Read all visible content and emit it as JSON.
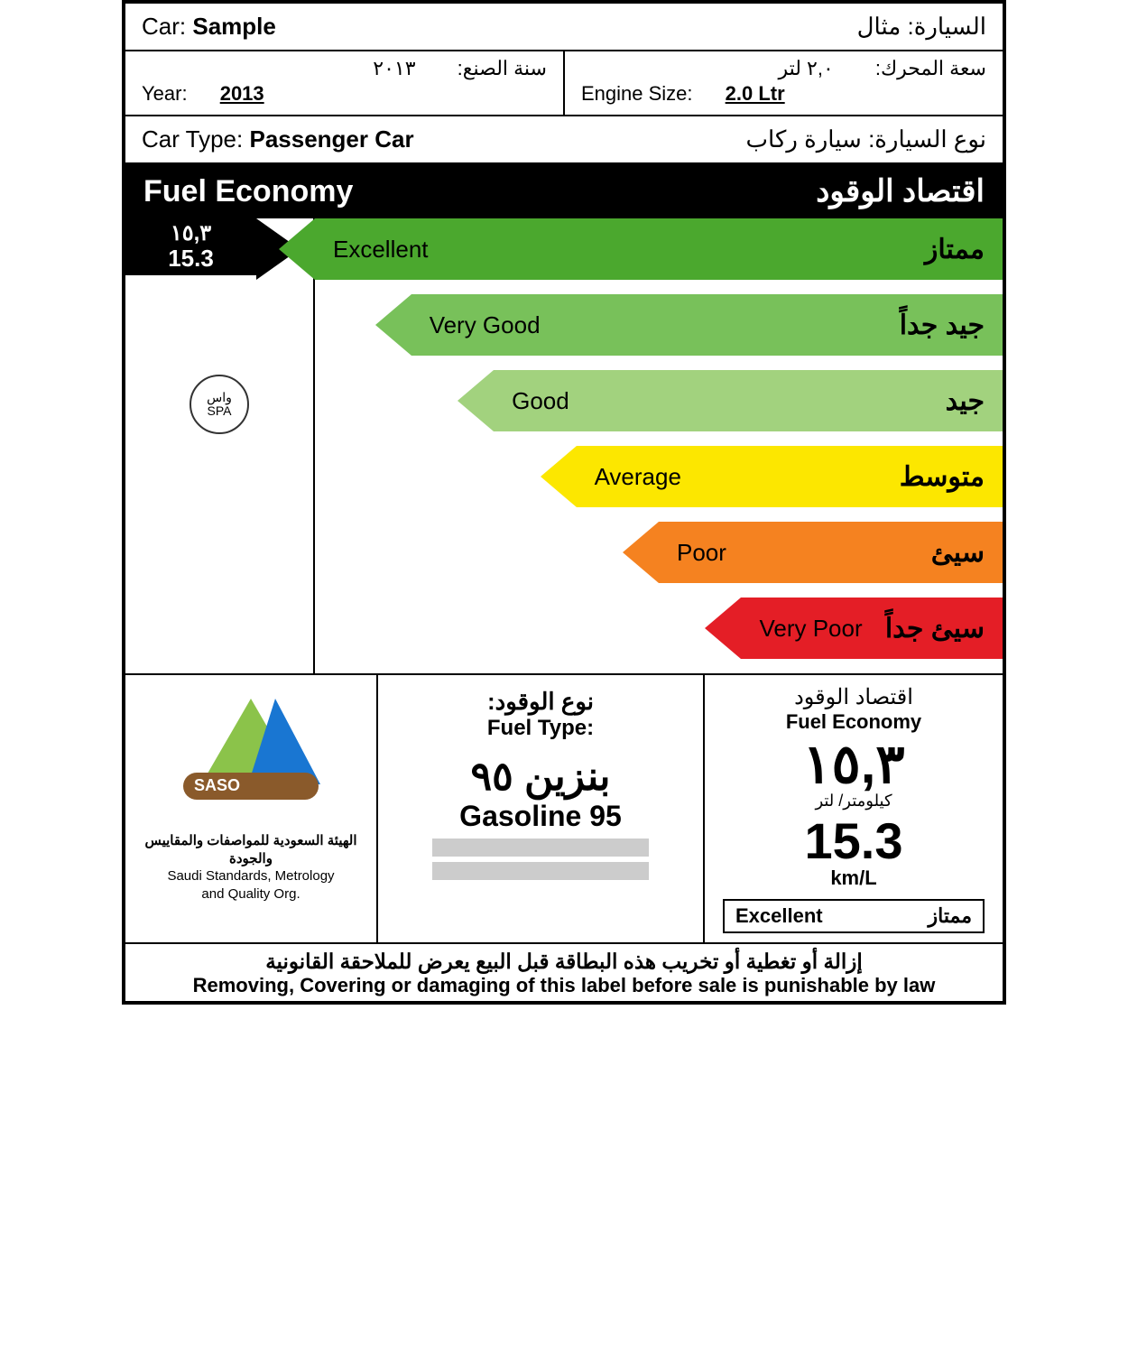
{
  "car": {
    "label_en": "Car:",
    "value_en": "Sample",
    "label_ar": "السيارة:",
    "value_ar": "مثال"
  },
  "year": {
    "label_en": "Year:",
    "value_en": "2013",
    "label_ar": "سنة الصنع:",
    "value_ar": "٢٠١٣"
  },
  "engine": {
    "label_en": "Engine Size:",
    "value_en": "2.0 Ltr",
    "label_ar": "سعة المحرك:",
    "value_ar": "٢,٠ لتر"
  },
  "car_type": {
    "label_en": "Car Type:",
    "value_en": "Passenger Car",
    "label_ar": "نوع السيارة:",
    "value_ar": "سيارة ركاب"
  },
  "header": {
    "en": "Fuel Economy",
    "ar": "اقتصاد الوقود"
  },
  "pointer": {
    "ar": "١٥,٣",
    "en": "15.3"
  },
  "watermark": {
    "ar": "واس",
    "en": "SPA"
  },
  "bars": [
    {
      "en": "Excellent",
      "ar": "ممتاز",
      "color": "#4ba82e",
      "width_pct": 100,
      "offset_pct": 0
    },
    {
      "en": "Very Good",
      "ar": "جيد جداً",
      "color": "#78c15a",
      "width_pct": 86,
      "offset_pct": 14
    },
    {
      "en": "Good",
      "ar": "جيد",
      "color": "#a2d27e",
      "width_pct": 74,
      "offset_pct": 26
    },
    {
      "en": "Average",
      "ar": "متوسط",
      "color": "#fce700",
      "width_pct": 62,
      "offset_pct": 38
    },
    {
      "en": "Poor",
      "ar": "سيئ",
      "color": "#f58220",
      "width_pct": 50,
      "offset_pct": 50
    },
    {
      "en": "Very Poor",
      "ar": "سيئ جداً",
      "color": "#e41e26",
      "width_pct": 38,
      "offset_pct": 62
    }
  ],
  "saso": {
    "badge": "SASO",
    "ar": "الهيئة السعودية للمواصفات والمقاييس والجودة",
    "en1": "Saudi Standards, Metrology",
    "en2": "and Quality Org."
  },
  "fuel_type": {
    "label_ar": "نوع الوقود:",
    "label_en": "Fuel Type:",
    "value_ar": "بنزين ٩٥",
    "value_en": "Gasoline 95"
  },
  "fuel_econ": {
    "label_ar": "اقتصاد الوقود",
    "label_en": "Fuel Economy",
    "big_ar": "١٥,٣",
    "unit_ar": "كيلومتر/ لتر",
    "big_en": "15.3",
    "unit_en": "km/L",
    "rating_en": "Excellent",
    "rating_ar": "ممتاز"
  },
  "warning": {
    "ar": "إزالة أو تغطية أو تخريب هذه البطاقة قبل البيع يعرض للملاحقة القانونية",
    "en": "Removing, Covering or damaging of this label before sale is punishable by law"
  },
  "colors": {
    "black": "#000000",
    "white": "#ffffff"
  }
}
